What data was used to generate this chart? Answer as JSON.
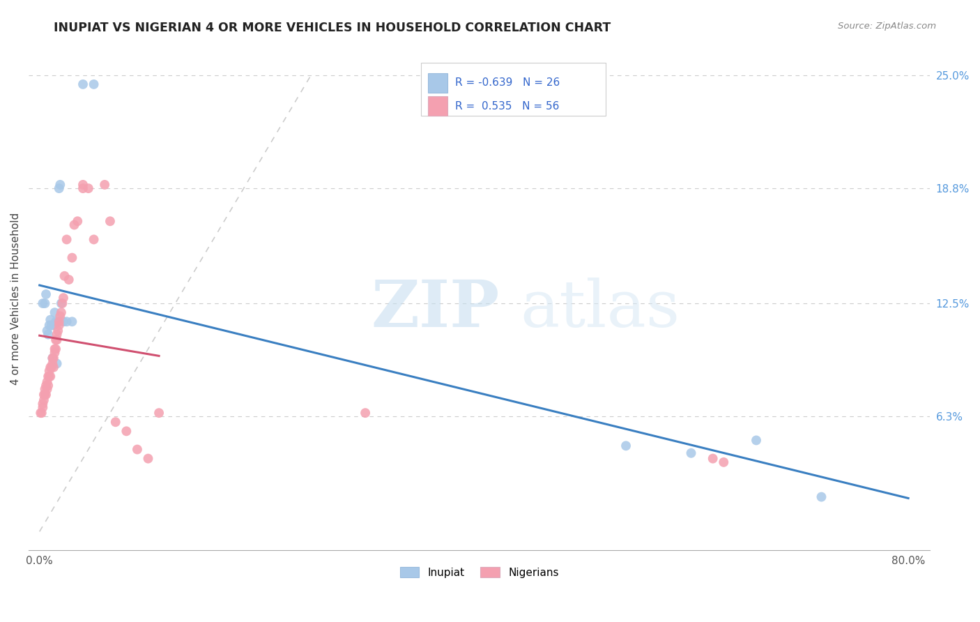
{
  "title": "INUPIAT VS NIGERIAN 4 OR MORE VEHICLES IN HOUSEHOLD CORRELATION CHART",
  "source": "Source: ZipAtlas.com",
  "ylabel_label": "4 or more Vehicles in Household",
  "legend_label1": "Inupiat",
  "legend_label2": "Nigerians",
  "r1": -0.639,
  "n1": 26,
  "r2": 0.535,
  "n2": 56,
  "watermark_zip": "ZIP",
  "watermark_atlas": "atlas",
  "inupiat_color": "#a8c8e8",
  "nigerian_color": "#f4a0b0",
  "inupiat_line_color": "#3a7fc1",
  "nigerian_line_color": "#d05070",
  "diagonal_color": "#cccccc",
  "xlim": [
    0.0,
    0.8
  ],
  "ylim": [
    0.0,
    0.25
  ],
  "yticks": [
    0.063,
    0.125,
    0.188,
    0.25
  ],
  "ytick_labels": [
    "6.3%",
    "12.5%",
    "18.8%",
    "25.0%"
  ],
  "xticks": [
    0.0,
    0.1,
    0.2,
    0.3,
    0.4,
    0.5,
    0.6,
    0.7,
    0.8
  ],
  "xtick_labels": [
    "0.0%",
    "",
    "",
    "",
    "",
    "",
    "",
    "",
    "80.0%"
  ],
  "inupiat_x": [
    0.003,
    0.005,
    0.006,
    0.007,
    0.008,
    0.009,
    0.01,
    0.011,
    0.012,
    0.013,
    0.014,
    0.015,
    0.016,
    0.017,
    0.018,
    0.019,
    0.02,
    0.022,
    0.025,
    0.03,
    0.04,
    0.05,
    0.54,
    0.6,
    0.66,
    0.72
  ],
  "inupiat_y": [
    0.125,
    0.125,
    0.13,
    0.11,
    0.108,
    0.113,
    0.116,
    0.113,
    0.095,
    0.113,
    0.12,
    0.115,
    0.092,
    0.115,
    0.188,
    0.19,
    0.125,
    0.115,
    0.115,
    0.115,
    0.245,
    0.245,
    0.047,
    0.043,
    0.05,
    0.019
  ],
  "nigerian_x": [
    0.001,
    0.002,
    0.003,
    0.003,
    0.004,
    0.004,
    0.005,
    0.005,
    0.006,
    0.006,
    0.007,
    0.007,
    0.008,
    0.008,
    0.009,
    0.009,
    0.01,
    0.01,
    0.011,
    0.012,
    0.012,
    0.013,
    0.013,
    0.014,
    0.014,
    0.015,
    0.015,
    0.016,
    0.016,
    0.017,
    0.018,
    0.018,
    0.019,
    0.02,
    0.021,
    0.022,
    0.023,
    0.025,
    0.027,
    0.03,
    0.032,
    0.035,
    0.04,
    0.04,
    0.045,
    0.05,
    0.06,
    0.065,
    0.07,
    0.08,
    0.09,
    0.1,
    0.11,
    0.3,
    0.62,
    0.63
  ],
  "nigerian_y": [
    0.065,
    0.065,
    0.068,
    0.07,
    0.072,
    0.075,
    0.075,
    0.078,
    0.075,
    0.08,
    0.078,
    0.082,
    0.08,
    0.085,
    0.085,
    0.088,
    0.085,
    0.09,
    0.09,
    0.092,
    0.095,
    0.09,
    0.095,
    0.098,
    0.1,
    0.1,
    0.105,
    0.105,
    0.108,
    0.11,
    0.113,
    0.115,
    0.118,
    0.12,
    0.125,
    0.128,
    0.14,
    0.16,
    0.138,
    0.15,
    0.168,
    0.17,
    0.188,
    0.19,
    0.188,
    0.16,
    0.19,
    0.17,
    0.06,
    0.055,
    0.045,
    0.04,
    0.065,
    0.065,
    0.04,
    0.038
  ]
}
